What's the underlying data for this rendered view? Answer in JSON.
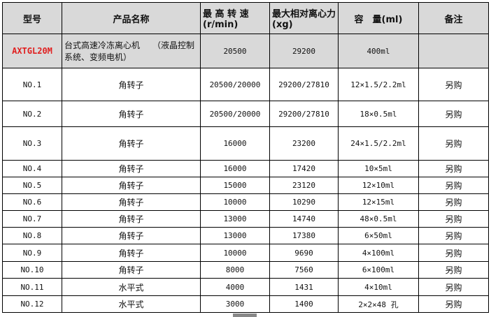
{
  "headers": {
    "model": "型号",
    "name": "产品名称",
    "speed": "最 高 转 速(r/min)",
    "rcf": "最大相对离心力(xg)",
    "capacity": "容　量(ml)",
    "note": "备注"
  },
  "main_product": {
    "model": "AXTGL20M",
    "name": "台式高速冷冻离心机　　（液晶控制系统、变频电机）",
    "speed": "20500",
    "rcf": "29200",
    "capacity": "400ml",
    "note": ""
  },
  "rows": [
    {
      "model": "NO.1",
      "name": "角转子",
      "speed": "20500/20000",
      "rcf": "29200/27810",
      "capacity": "12×1.5/2.2ml",
      "note": "另购"
    },
    {
      "model": "NO.2",
      "name": "角转子",
      "speed": "20500/20000",
      "rcf": "29200/27810",
      "capacity": "18×0.5ml",
      "note": "另购"
    },
    {
      "model": "NO.3",
      "name": "角转子",
      "speed": "16000",
      "rcf": "23200",
      "capacity": "24×1.5/2.2ml",
      "note": "另购"
    },
    {
      "model": "NO.4",
      "name": "角转子",
      "speed": "16000",
      "rcf": "17420",
      "capacity": "10×5ml",
      "note": "另购"
    },
    {
      "model": "NO.5",
      "name": "角转子",
      "speed": "15000",
      "rcf": "23120",
      "capacity": "12×10ml",
      "note": "另购"
    },
    {
      "model": "NO.6",
      "name": "角转子",
      "speed": "10000",
      "rcf": "10290",
      "capacity": "12×15ml",
      "note": "另购"
    },
    {
      "model": "NO.7",
      "name": "角转子",
      "speed": "13000",
      "rcf": "14740",
      "capacity": "48×0.5ml",
      "note": "另购"
    },
    {
      "model": "NO.8",
      "name": "角转子",
      "speed": "13000",
      "rcf": "17380",
      "capacity": "6×50ml",
      "note": "另购"
    },
    {
      "model": "NO.9",
      "name": "角转子",
      "speed": "10000",
      "rcf": "9690",
      "capacity": "4×100ml",
      "note": "另购"
    },
    {
      "model": "NO.10",
      "name": "角转子",
      "speed": "8000",
      "rcf": "7560",
      "capacity": "6×100ml",
      "note": "另购"
    },
    {
      "model": "NO.11",
      "name": "水平式",
      "speed": "4000",
      "rcf": "1431",
      "capacity": "4×10ml",
      "note": "另购"
    },
    {
      "model": "NO.12",
      "name": "水平式",
      "speed": "3000",
      "rcf": "1400",
      "capacity": "2×2×48 孔",
      "note": "另购"
    }
  ]
}
